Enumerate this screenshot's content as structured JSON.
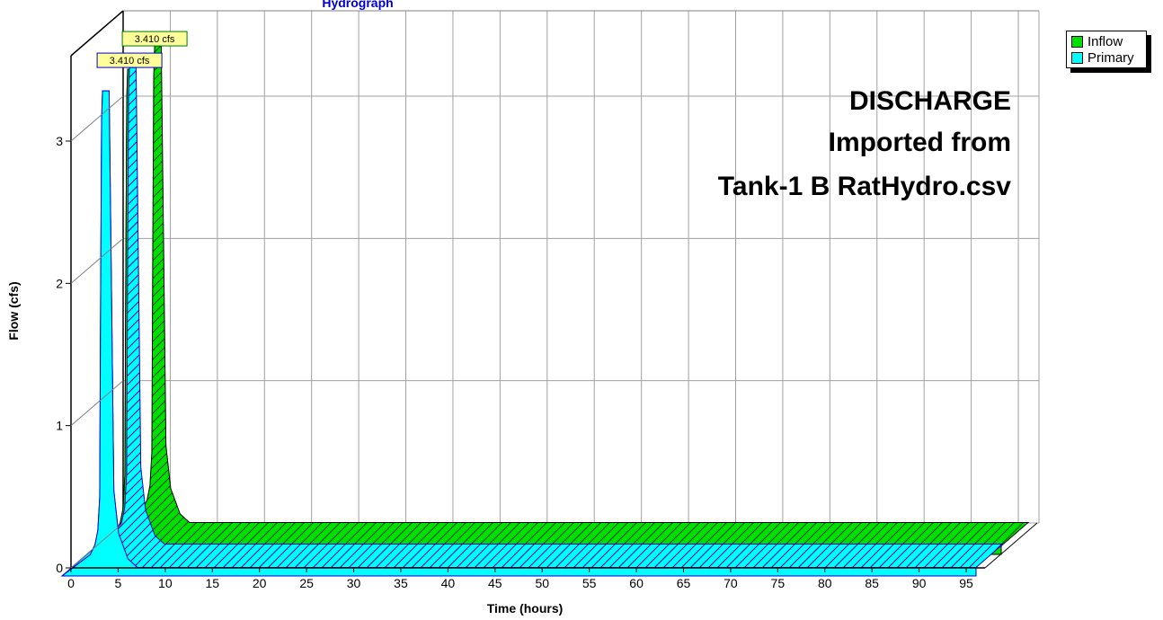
{
  "chart_data": {
    "type": "area",
    "title": "Hydrograph",
    "xlabel": "Time  (hours)",
    "ylabel": "Flow  (cfs)",
    "xlim": [
      0,
      97
    ],
    "ylim": [
      0,
      3.6
    ],
    "x_ticks": [
      0,
      5,
      10,
      15,
      20,
      25,
      30,
      35,
      40,
      45,
      50,
      55,
      60,
      65,
      70,
      75,
      80,
      85,
      90,
      95
    ],
    "y_ticks": [
      0,
      1,
      2,
      3
    ],
    "grid": true,
    "legend_position": "top-right",
    "annotation": [
      "DISCHARGE",
      "Imported from",
      "Tank-1 B RatHydro.csv"
    ],
    "series": [
      {
        "name": "Inflow",
        "color": "#00e000",
        "peak_label": "3.410 cfs",
        "x": [
          0,
          2,
          3,
          3.5,
          3.8,
          4.0,
          4.1,
          4.2,
          4.3,
          4.6,
          5.0,
          5.5,
          6.0,
          7.0,
          8.0,
          97
        ],
        "y": [
          0,
          0.1,
          0.15,
          0.22,
          0.32,
          0.55,
          2.0,
          3.2,
          3.41,
          3.41,
          3.41,
          0.6,
          0.3,
          0.12,
          0.06,
          0.06
        ]
      },
      {
        "name": "Primary",
        "color": "#00ffff",
        "peak_label": "3.410 cfs",
        "x": [
          0,
          2,
          3,
          3.5,
          3.8,
          4.0,
          4.1,
          4.2,
          4.3,
          4.6,
          5.0,
          5.5,
          6.0,
          7.0,
          8.0,
          97
        ],
        "y": [
          0,
          0.1,
          0.15,
          0.22,
          0.32,
          0.55,
          2.0,
          3.2,
          3.41,
          3.41,
          3.41,
          0.6,
          0.3,
          0.12,
          0.06,
          0.06
        ]
      }
    ]
  },
  "legend": {
    "items": [
      {
        "label": "Inflow",
        "color": "#00e000"
      },
      {
        "label": "Primary",
        "color": "#00ffff"
      }
    ]
  }
}
